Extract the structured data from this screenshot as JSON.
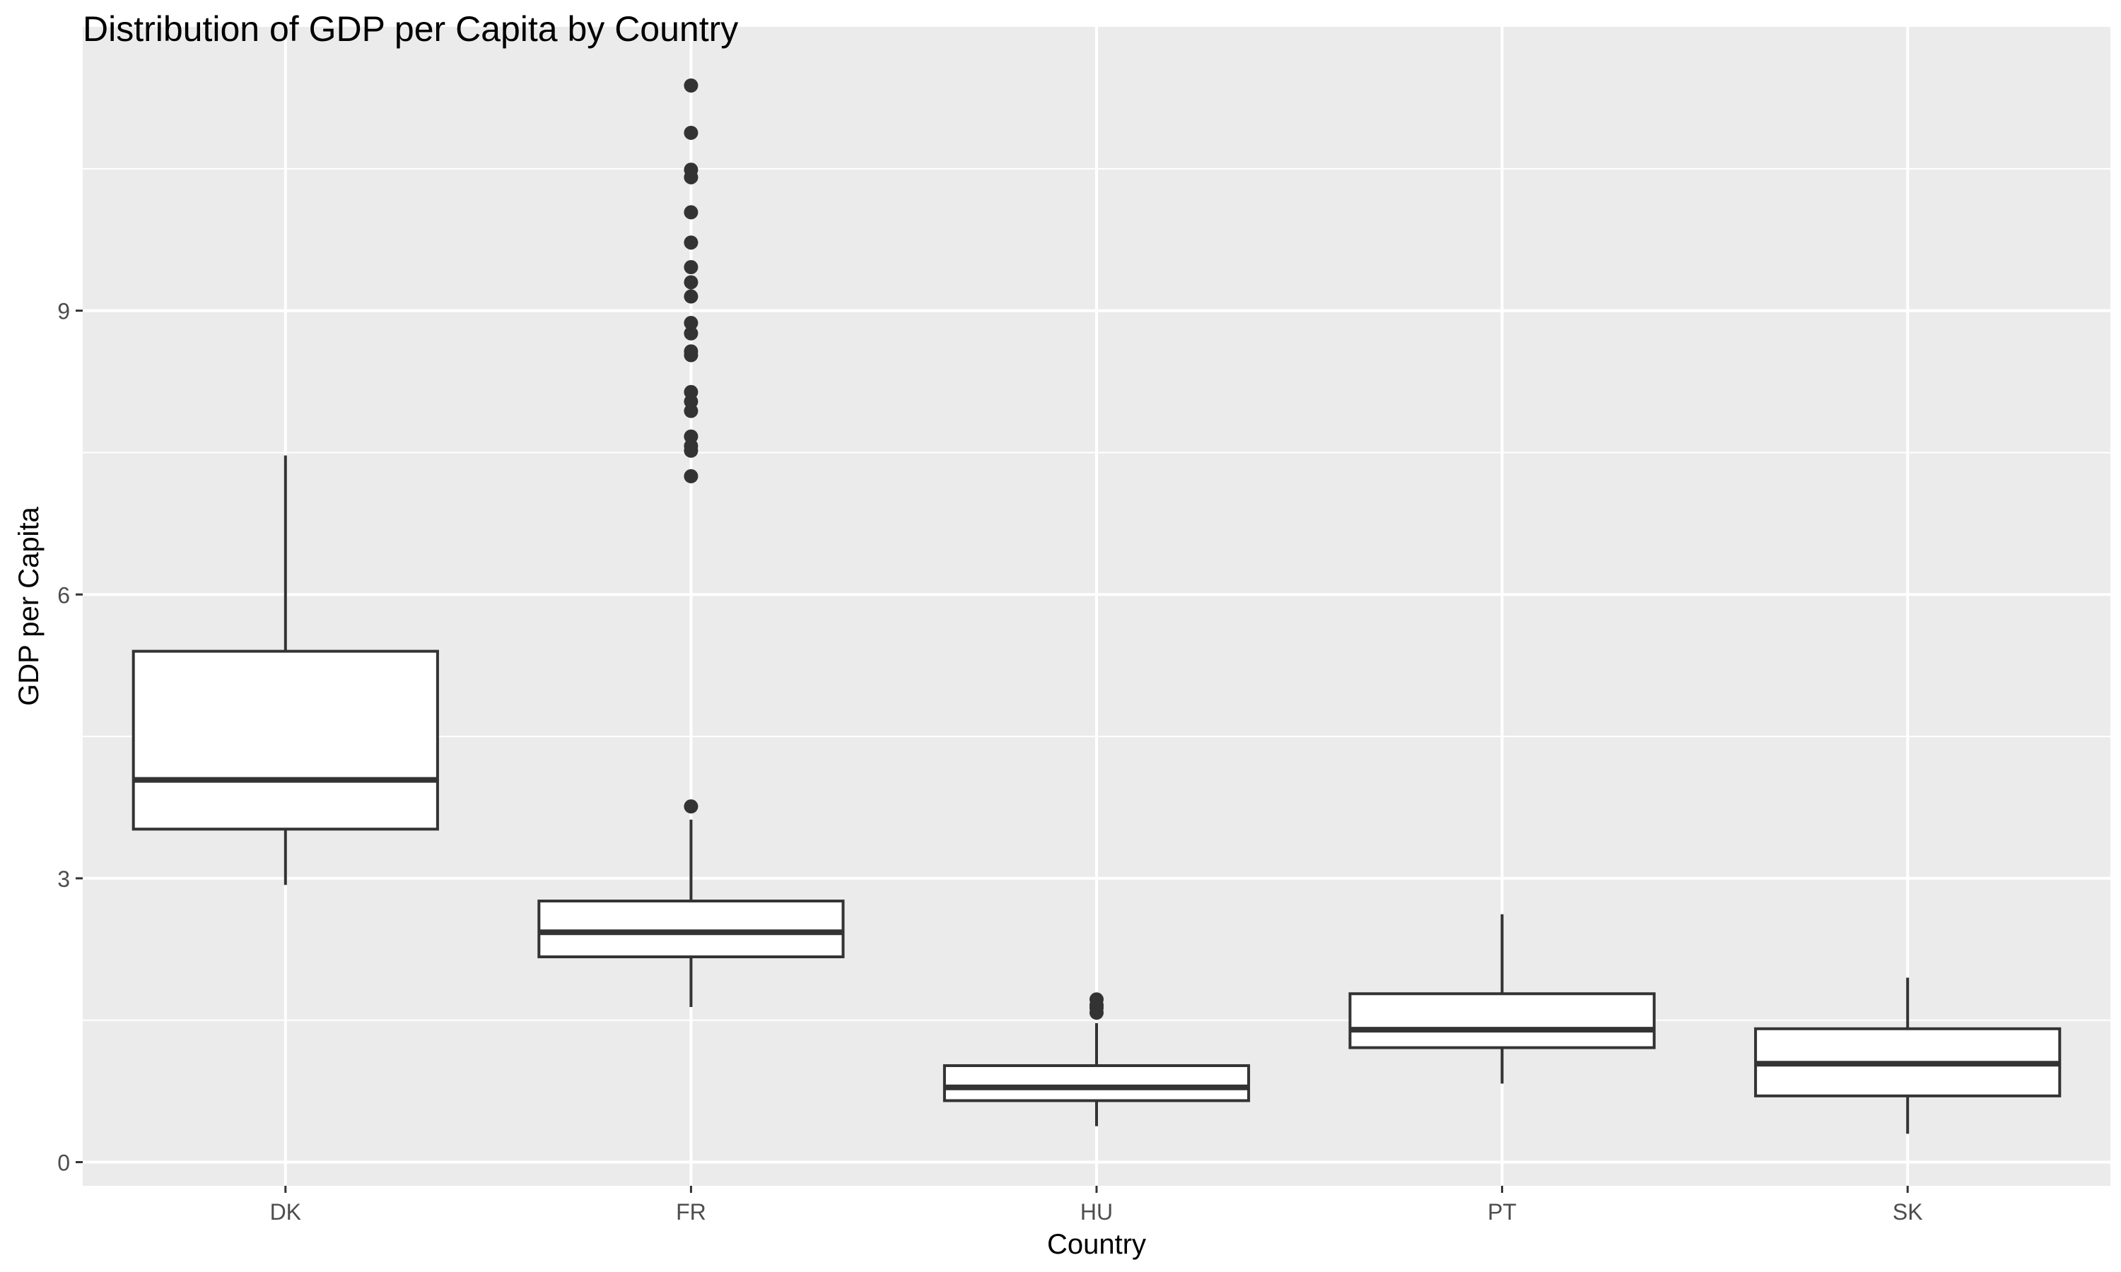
{
  "chart_data": {
    "type": "boxplot",
    "title": "Distribution of GDP per Capita by Country",
    "xlabel": "Country",
    "ylabel": "GDP per Capita",
    "ylim": [
      -0.25,
      12.0
    ],
    "yticks": [
      0,
      3,
      6,
      9
    ],
    "grid": true,
    "categories": [
      "DK",
      "FR",
      "HU",
      "PT",
      "SK"
    ],
    "boxes": [
      {
        "category": "DK",
        "whisker_low": 2.93,
        "q1": 3.52,
        "median": 4.04,
        "q3": 5.4,
        "whisker_high": 7.47,
        "outliers": []
      },
      {
        "category": "FR",
        "whisker_low": 1.64,
        "q1": 2.17,
        "median": 2.43,
        "q3": 2.76,
        "whisker_high": 3.62,
        "outliers": [
          3.76,
          7.25,
          7.52,
          7.57,
          7.67,
          7.94,
          8.04,
          8.14,
          8.53,
          8.57,
          8.76,
          8.87,
          9.15,
          9.3,
          9.46,
          9.72,
          10.04,
          10.41,
          10.49,
          10.88,
          11.38
        ]
      },
      {
        "category": "HU",
        "whisker_low": 0.38,
        "q1": 0.65,
        "median": 0.79,
        "q3": 1.02,
        "whisker_high": 1.47,
        "outliers": [
          1.58,
          1.63,
          1.66,
          1.72
        ]
      },
      {
        "category": "PT",
        "whisker_low": 0.83,
        "q1": 1.21,
        "median": 1.4,
        "q3": 1.78,
        "whisker_high": 2.62,
        "outliers": []
      },
      {
        "category": "SK",
        "whisker_low": 0.3,
        "q1": 0.7,
        "median": 1.04,
        "q3": 1.41,
        "whisker_high": 1.95,
        "outliers": []
      }
    ],
    "colors": {
      "panel": "#EBEBEB",
      "grid": "#FFFFFF",
      "box_fill": "#FFFFFF",
      "box_line": "#333333",
      "tick_text": "#4D4D4D",
      "title_text": "#000000"
    }
  }
}
